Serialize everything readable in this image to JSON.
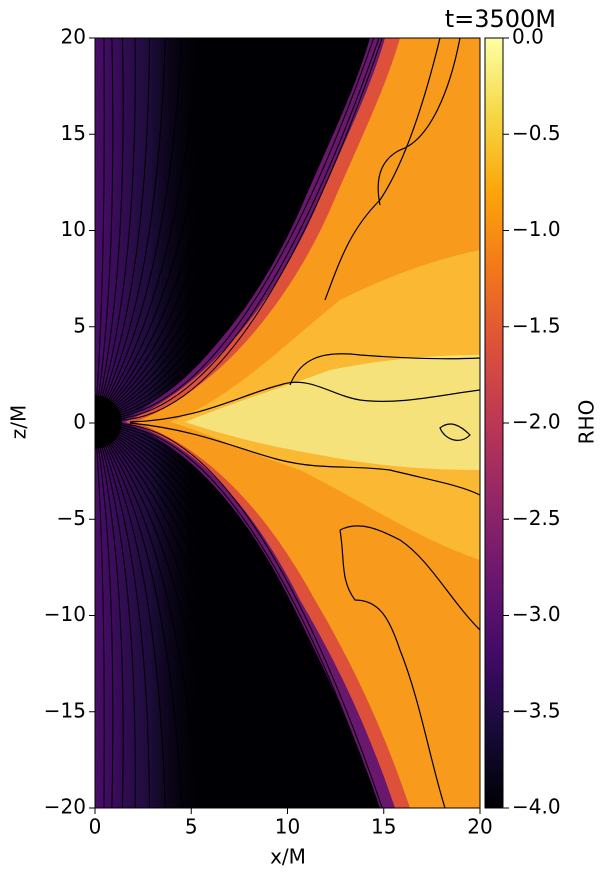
{
  "chart_data": {
    "type": "heatmap",
    "title": "t=3500M",
    "x_label": "x/M",
    "y_label": "z/M",
    "colorbar_label": "RHO",
    "colormap": "inferno",
    "xlim": [
      0,
      20
    ],
    "xticks": [
      0,
      5,
      10,
      15,
      20
    ],
    "ylim": [
      -20,
      20
    ],
    "yticks": [
      {
        "value": -20,
        "label": "−20"
      },
      {
        "value": -15,
        "label": "−15"
      },
      {
        "value": -10,
        "label": "−10"
      },
      {
        "value": -5,
        "label": "−5"
      },
      0,
      5,
      10,
      15,
      20
    ],
    "clim": [
      -4,
      0
    ],
    "cticks": [
      {
        "value": -4,
        "label": "−4.0"
      },
      {
        "value": -3.5,
        "label": "−3.5"
      },
      {
        "value": -3,
        "label": "−3.0"
      },
      {
        "value": -2.5,
        "label": "−2.5"
      },
      {
        "value": -2,
        "label": "−2.0"
      },
      {
        "value": -1.5,
        "label": "−1.5"
      },
      {
        "value": -1,
        "label": "−1.0"
      },
      {
        "value": -0.5,
        "label": "−0.5"
      },
      {
        "value": 0,
        "label": "0.0"
      }
    ]
  }
}
